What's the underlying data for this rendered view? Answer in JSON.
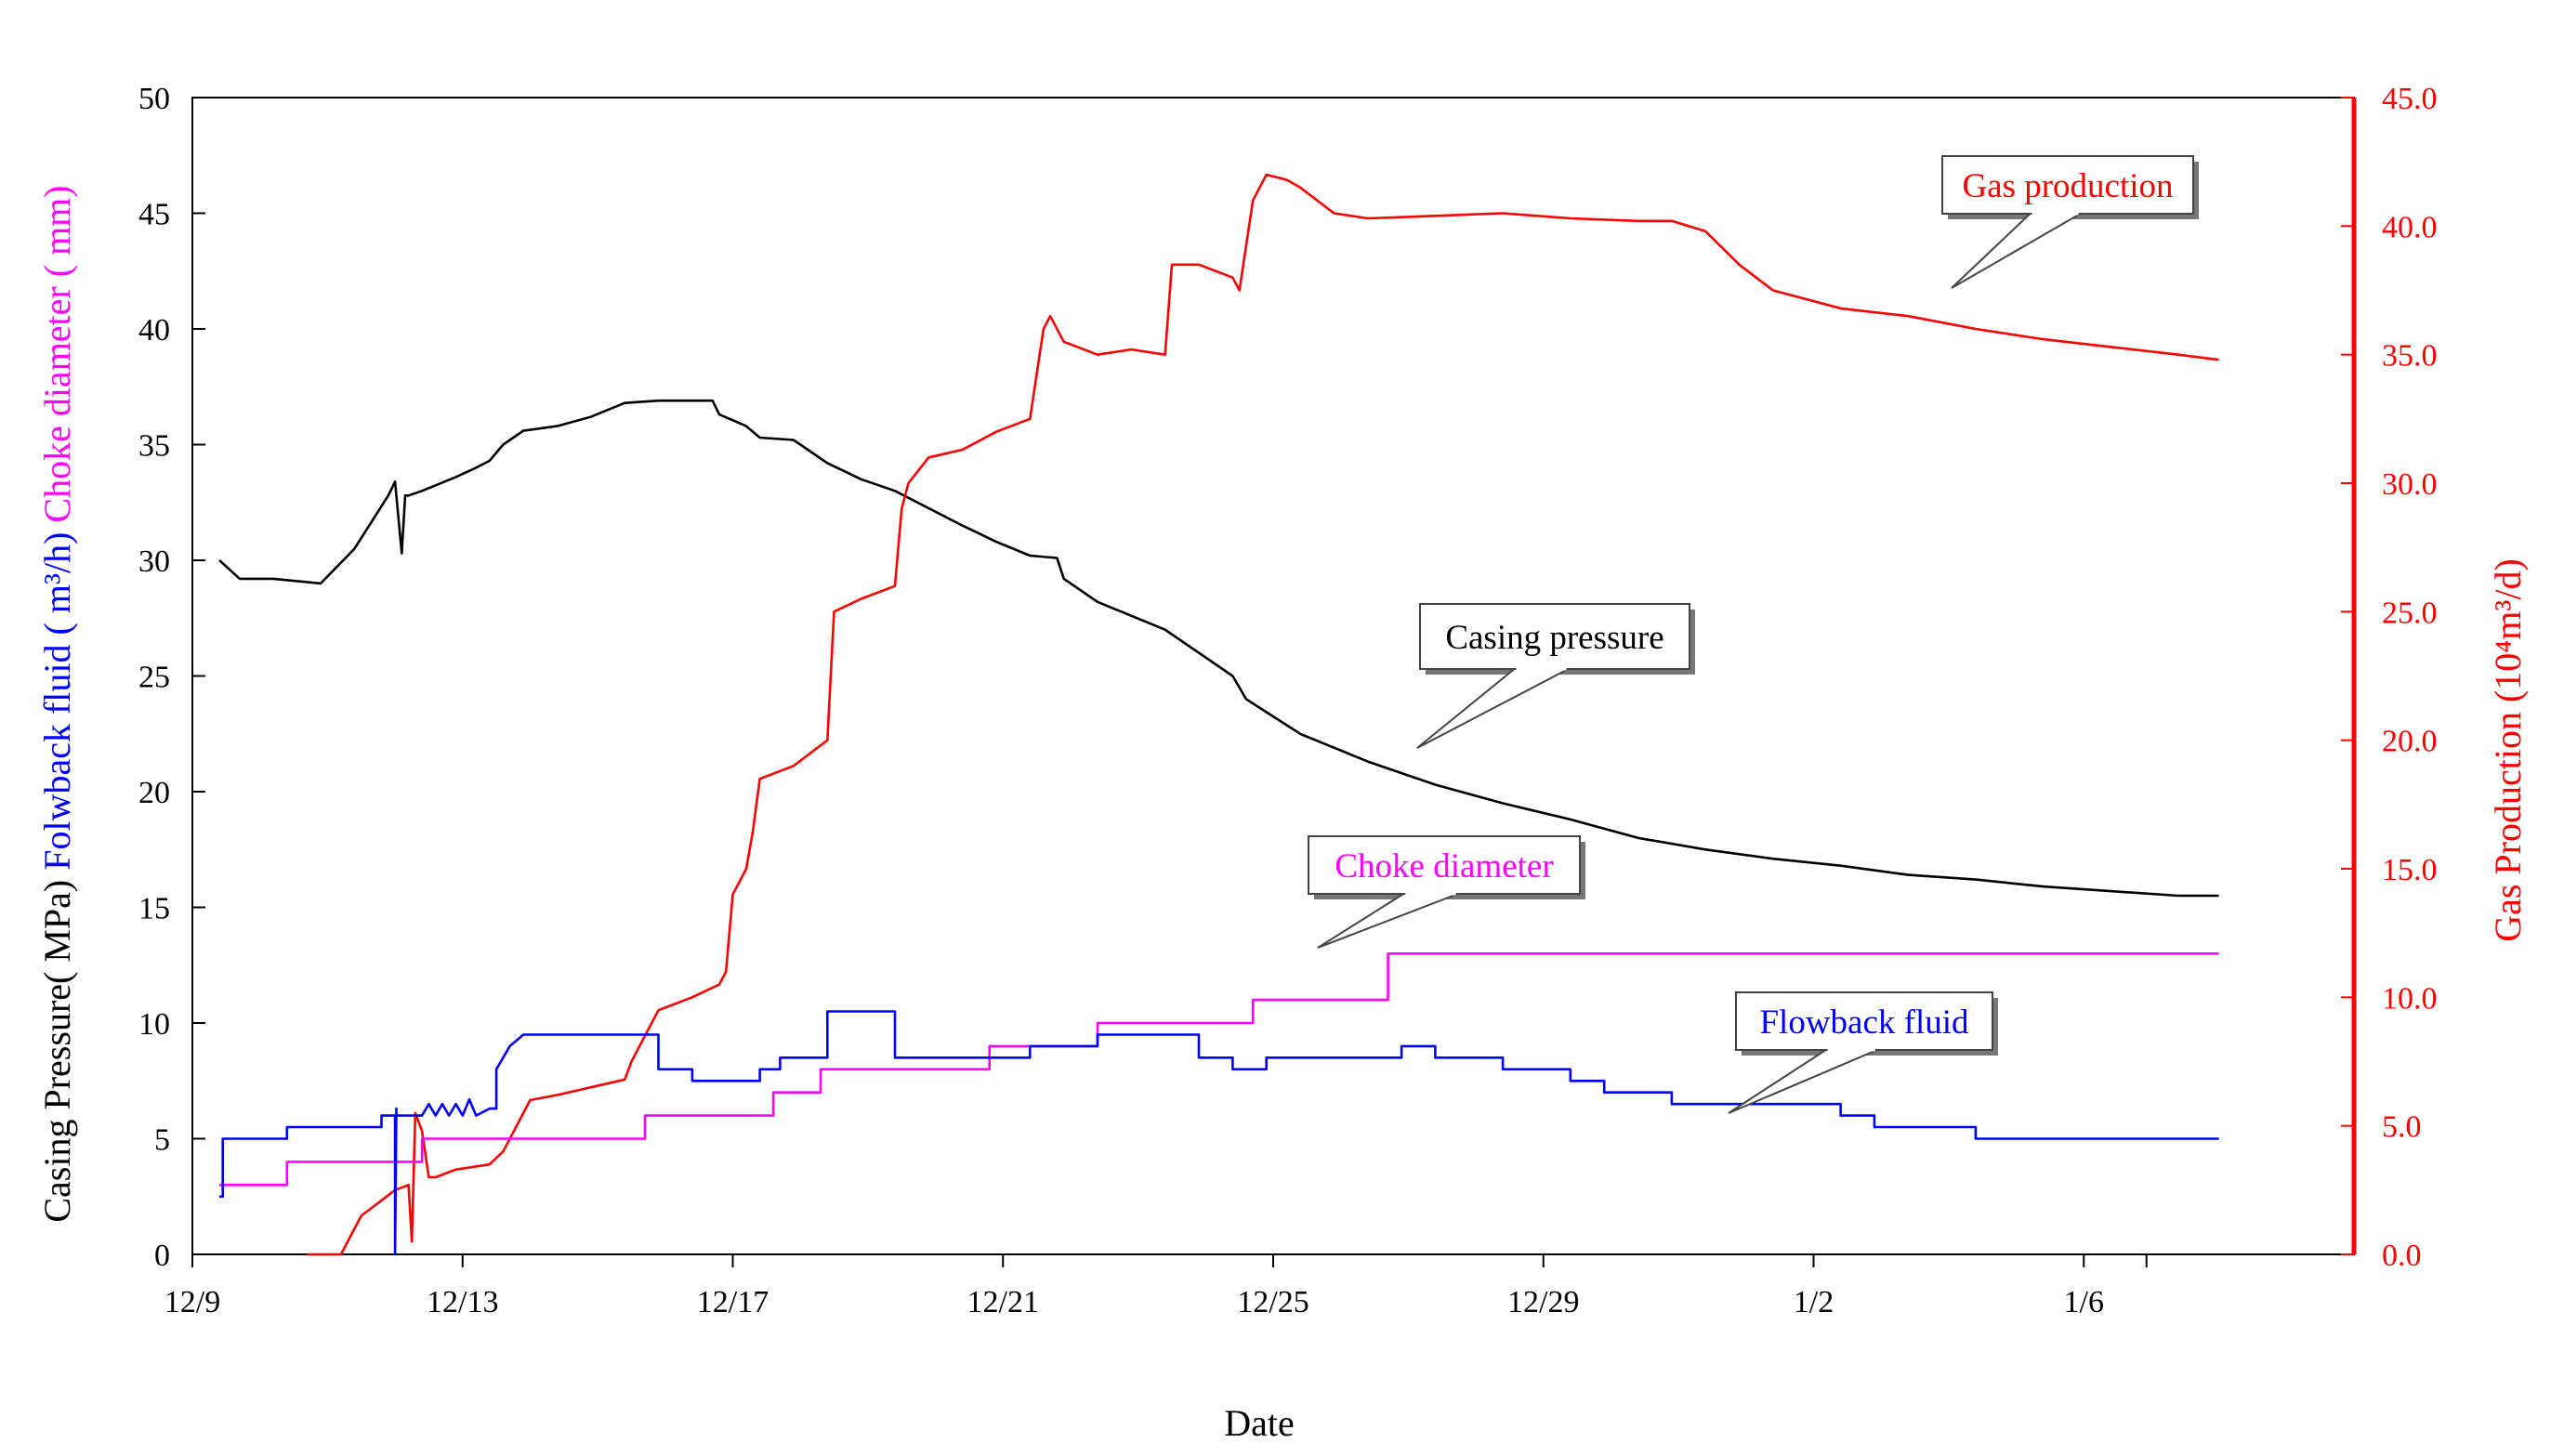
{
  "chart_data": {
    "type": "line",
    "xlabel": "Date",
    "x_ticks": [
      "12/9",
      "12/13",
      "12/17",
      "12/21",
      "12/25",
      "12/29",
      "1/2",
      "1/6"
    ],
    "x_range_days": [
      0,
      32
    ],
    "y_left": {
      "ylim": [
        0,
        50
      ],
      "ticks": [
        "0",
        "5",
        "10",
        "15",
        "20",
        "25",
        "30",
        "35",
        "40",
        "45",
        "50"
      ],
      "labels": [
        {
          "text": "Casing Pressure( MPa)",
          "color": "#000000"
        },
        {
          "text": "Folwback fluid ( m³/h)",
          "color": "#0000ff"
        },
        {
          "text": "Choke diameter ( mm)",
          "color": "#ff00ff"
        }
      ]
    },
    "y_right": {
      "ylim": [
        0,
        45
      ],
      "ticks": [
        "0.0",
        "5.0",
        "10.0",
        "15.0",
        "20.0",
        "25.0",
        "30.0",
        "35.0",
        "40.0",
        "45.0"
      ],
      "label": "Gas Production (10⁴m³/d)",
      "color": "#ff0000"
    },
    "grid": false,
    "series": [
      {
        "name": "Casing pressure",
        "axis": "left",
        "color": "#000000",
        "x": [
          0.0,
          0.3,
          0.8,
          1.5,
          2.0,
          2.5,
          2.6,
          2.7,
          2.75,
          2.8,
          3.0,
          3.5,
          3.8,
          4.0,
          4.2,
          4.5,
          5.0,
          5.5,
          6.0,
          6.5,
          7.0,
          7.3,
          7.4,
          7.8,
          8.0,
          8.5,
          9.0,
          9.5,
          10.0,
          11.0,
          11.5,
          12.0,
          12.4,
          12.5,
          13.0,
          14.0,
          14.5,
          15.0,
          15.2,
          16.0,
          17.0,
          18.0,
          19.0,
          20.0,
          21.0,
          22.0,
          23.0,
          24.0,
          25.0,
          26.0,
          27.0,
          28.0,
          29.0,
          29.6
        ],
        "y": [
          30.0,
          29.2,
          29.2,
          29.0,
          30.5,
          32.8,
          33.4,
          30.3,
          32.8,
          32.8,
          33.0,
          33.6,
          34.0,
          34.3,
          35.0,
          35.6,
          35.8,
          36.2,
          36.8,
          36.9,
          36.9,
          36.9,
          36.3,
          35.8,
          35.3,
          35.2,
          34.2,
          33.5,
          33.0,
          31.5,
          30.8,
          30.2,
          30.1,
          29.2,
          28.2,
          27.0,
          26.0,
          25.0,
          24.0,
          22.5,
          21.3,
          20.3,
          19.5,
          18.8,
          18.0,
          17.5,
          17.1,
          16.8,
          16.4,
          16.2,
          15.9,
          15.7,
          15.5,
          15.5
        ]
      },
      {
        "name": "Gas production",
        "axis": "right",
        "color": "#ff0000",
        "x": [
          1.3,
          1.8,
          2.1,
          2.6,
          2.8,
          2.85,
          2.9,
          3.0,
          3.1,
          3.2,
          3.5,
          4.0,
          4.2,
          4.5,
          4.6,
          5.0,
          5.5,
          6.0,
          6.1,
          6.5,
          7.0,
          7.4,
          7.5,
          7.6,
          7.8,
          7.9,
          8.0,
          8.5,
          9.0,
          9.1,
          9.5,
          10.0,
          10.1,
          10.2,
          10.5,
          11.0,
          11.5,
          12.0,
          12.2,
          12.3,
          12.5,
          13.0,
          13.5,
          14.0,
          14.1,
          14.5,
          15.0,
          15.1,
          15.3,
          15.5,
          15.8,
          16.0,
          16.5,
          17.0,
          18.0,
          19.0,
          20.0,
          21.0,
          21.5,
          22.0,
          22.5,
          23.0,
          24.0,
          25.0,
          26.0,
          27.0,
          28.0,
          29.0,
          29.6
        ],
        "y": [
          0.0,
          0.0,
          1.5,
          2.5,
          2.7,
          0.5,
          5.5,
          4.8,
          3.0,
          3.0,
          3.3,
          3.5,
          4.0,
          5.5,
          6.0,
          6.2,
          6.5,
          6.8,
          7.5,
          9.5,
          10.0,
          10.5,
          11.0,
          14.0,
          15.0,
          16.5,
          18.5,
          19.0,
          20.0,
          25.0,
          25.5,
          26.0,
          29.0,
          30.0,
          31.0,
          31.3,
          32.0,
          32.5,
          36.0,
          36.5,
          35.5,
          35.0,
          35.2,
          35.0,
          38.5,
          38.5,
          38.0,
          37.5,
          41.0,
          42.0,
          41.8,
          41.5,
          40.5,
          40.3,
          40.4,
          40.5,
          40.3,
          40.2,
          40.2,
          39.8,
          38.5,
          37.5,
          36.8,
          36.5,
          36.0,
          35.6,
          35.3,
          35.0,
          34.8
        ]
      },
      {
        "name": "Choke diameter",
        "axis": "left",
        "color": "#ff00ff",
        "x": [
          0.0,
          1.0,
          1.0,
          3.0,
          3.0,
          6.3,
          6.3,
          8.2,
          8.2,
          8.9,
          8.9,
          11.4,
          11.4,
          13.0,
          13.0,
          15.3,
          15.3,
          17.3,
          17.3,
          29.6
        ],
        "y": [
          3.0,
          3.0,
          4.0,
          4.0,
          5.0,
          5.0,
          6.0,
          6.0,
          7.0,
          7.0,
          8.0,
          8.0,
          9.0,
          9.0,
          10.0,
          10.0,
          11.0,
          11.0,
          13.0,
          13.0
        ]
      },
      {
        "name": "Flowback fluid",
        "axis": "left",
        "color": "#0000ff",
        "x": [
          0.0,
          0.05,
          0.05,
          1.0,
          1.0,
          2.4,
          2.4,
          2.6,
          2.6,
          2.62,
          2.62,
          3.0,
          3.1,
          3.2,
          3.3,
          3.4,
          3.5,
          3.6,
          3.7,
          3.8,
          4.0,
          4.1,
          4.1,
          4.3,
          4.5,
          5.0,
          6.0,
          6.5,
          6.5,
          7.0,
          7.0,
          8.0,
          8.0,
          8.3,
          8.3,
          9.0,
          9.0,
          10.0,
          10.0,
          11.0,
          11.0,
          12.0,
          12.0,
          13.0,
          13.0,
          14.5,
          14.5,
          15.0,
          15.0,
          15.5,
          15.5,
          17.5,
          17.5,
          18.0,
          18.0,
          19.0,
          19.0,
          20.0,
          20.0,
          20.5,
          20.5,
          21.5,
          21.5,
          24.0,
          24.0,
          24.5,
          24.5,
          25.5,
          25.5,
          26.0,
          26.0,
          27.0,
          27.0,
          28.0,
          28.0,
          29.6
        ],
        "y": [
          2.5,
          2.5,
          5.0,
          5.0,
          5.5,
          5.5,
          6.0,
          6.0,
          0.0,
          6.3,
          6.0,
          6.0,
          6.5,
          6.0,
          6.5,
          6.0,
          6.5,
          6.0,
          6.7,
          6.0,
          6.3,
          6.3,
          8.0,
          9.0,
          9.5,
          9.5,
          9.5,
          9.5,
          8.0,
          8.0,
          7.5,
          7.5,
          8.0,
          8.0,
          8.5,
          8.5,
          10.5,
          10.5,
          8.5,
          8.5,
          8.5,
          8.5,
          9.0,
          9.0,
          9.5,
          9.5,
          8.5,
          8.5,
          8.0,
          8.0,
          8.5,
          8.5,
          9.0,
          9.0,
          8.5,
          8.5,
          8.0,
          8.0,
          7.5,
          7.5,
          7.0,
          7.0,
          6.5,
          6.5,
          6.0,
          6.0,
          5.5,
          5.5,
          5.5,
          5.5,
          5.0,
          5.0,
          5.0,
          5.0,
          5.0,
          5.0
        ]
      }
    ],
    "annotations": [
      {
        "text": "Gas production",
        "color": "#ff0000",
        "series": "Gas production"
      },
      {
        "text": "Casing pressure",
        "color": "#000000",
        "series": "Casing pressure"
      },
      {
        "text": "Choke diameter",
        "color": "#ff00ff",
        "series": "Choke diameter"
      },
      {
        "text": "Flowback fluid",
        "color": "#0000ff",
        "series": "Flowback fluid"
      }
    ]
  }
}
